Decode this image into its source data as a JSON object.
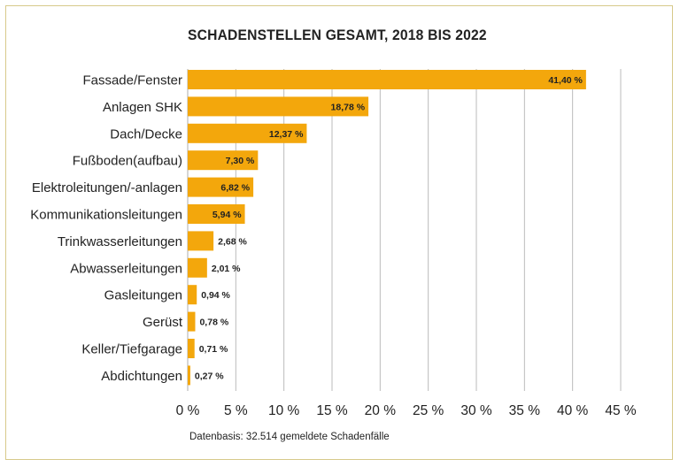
{
  "chart_data": {
    "type": "bar",
    "orientation": "horizontal",
    "title": "SCHADENSTELLEN GESAMT, 2018 BIS 2022",
    "footnote": "Datenbasis: 32.514 gemeldete Schadenfälle",
    "categories": [
      "Fassade/Fenster",
      "Anlagen SHK",
      "Dach/Decke",
      "Fußboden(aufbau)",
      "Elektroleitungen/-anlagen",
      "Kommunikationsleitungen",
      "Trinkwasserleitungen",
      "Abwasserleitungen",
      "Gasleitungen",
      "Gerüst",
      "Keller/Tiefgarage",
      "Abdichtungen"
    ],
    "values": [
      41.4,
      18.78,
      12.37,
      7.3,
      6.82,
      5.94,
      2.68,
      2.01,
      0.94,
      0.78,
      0.71,
      0.27
    ],
    "value_labels": [
      "41,40 %",
      "18,78 %",
      "12,37 %",
      "7,30 %",
      "6,82 %",
      "5,94 %",
      "2,68 %",
      "2,01 %",
      "0,94 %",
      "0,78 %",
      "0,71 %",
      "0,27 %"
    ],
    "xlim": [
      0,
      45
    ],
    "xticks": [
      0,
      5,
      10,
      15,
      20,
      25,
      30,
      35,
      40,
      45
    ],
    "xtick_labels": [
      "0 %",
      "5 %",
      "10 %",
      "15 %",
      "20 %",
      "25 %",
      "30 %",
      "35 %",
      "40 %",
      "45 %"
    ],
    "grid": "vertical",
    "bar_color": "#f3a70c",
    "grid_color": "#bbbbbb",
    "frame_color": "#d7c98a"
  }
}
